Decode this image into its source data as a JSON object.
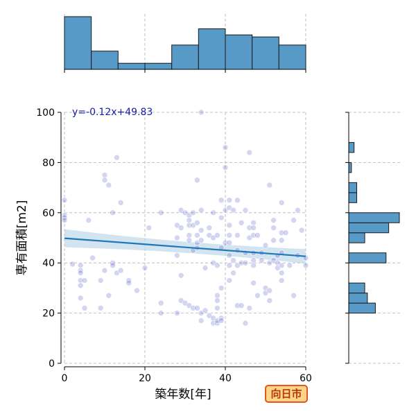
{
  "chart_data": {
    "type": "scatter",
    "xlabel": "築年数[年]",
    "ylabel": "専有面積[m2]",
    "xlim": [
      0,
      60
    ],
    "ylim": [
      0,
      100
    ],
    "x_ticks": [
      "0",
      "20",
      "40",
      "60"
    ],
    "y_ticks": [
      "0",
      "20",
      "40",
      "60",
      "80",
      "100"
    ],
    "grid": true,
    "annotation": "y=-0.12x+49.83",
    "regression": {
      "slope": -0.12,
      "intercept": 49.83,
      "ci_halfwidth_mid": 2.2,
      "ci_halfwidth_end": 3.6
    },
    "colors": {
      "points": "#3b3fbf",
      "line": "#1f77b4",
      "band": "#bcd6ea",
      "hist": "#5799c7",
      "annotation": "#1a1aaa"
    },
    "x_hist": {
      "bins": [
        0,
        6.67,
        13.33,
        20,
        26.67,
        33.33,
        40,
        46.67,
        53.33,
        60
      ],
      "counts": [
        26,
        9,
        3,
        3,
        12,
        20,
        17,
        16,
        12
      ]
    },
    "y_hist": {
      "bins": [
        0,
        4,
        8,
        12,
        16,
        20,
        24,
        28,
        32,
        36,
        40,
        44,
        48,
        52,
        56,
        60,
        64,
        68,
        72,
        76,
        80,
        84,
        88,
        92,
        96,
        100
      ],
      "counts": [
        0,
        0,
        0,
        0,
        0,
        10,
        7,
        6,
        0,
        0,
        14,
        0,
        6,
        15,
        19,
        0,
        3,
        3,
        0,
        1,
        0,
        2,
        0,
        0,
        0
      ]
    },
    "points": [
      [
        0,
        65
      ],
      [
        0,
        59
      ],
      [
        0,
        58
      ],
      [
        0,
        57
      ],
      [
        2,
        39.5
      ],
      [
        4,
        39
      ],
      [
        4,
        37
      ],
      [
        4,
        36
      ],
      [
        4,
        33
      ],
      [
        4,
        31
      ],
      [
        4,
        26
      ],
      [
        5,
        22
      ],
      [
        5,
        33
      ],
      [
        6,
        57
      ],
      [
        7,
        42
      ],
      [
        9,
        33
      ],
      [
        9,
        22
      ],
      [
        10,
        75
      ],
      [
        10,
        73
      ],
      [
        10,
        37
      ],
      [
        11,
        71
      ],
      [
        11,
        27
      ],
      [
        12,
        60
      ],
      [
        12,
        40
      ],
      [
        12,
        39
      ],
      [
        13,
        82
      ],
      [
        13,
        36
      ],
      [
        14,
        64
      ],
      [
        14,
        37
      ],
      [
        16,
        33
      ],
      [
        16,
        32
      ],
      [
        18,
        29
      ],
      [
        20,
        38
      ],
      [
        21,
        54
      ],
      [
        24,
        60
      ],
      [
        24,
        24
      ],
      [
        24,
        20
      ],
      [
        28,
        55
      ],
      [
        28,
        50
      ],
      [
        28,
        43
      ],
      [
        28,
        20
      ],
      [
        29,
        61
      ],
      [
        29,
        54
      ],
      [
        29,
        35
      ],
      [
        29,
        25
      ],
      [
        30,
        60
      ],
      [
        30,
        24
      ],
      [
        31,
        59
      ],
      [
        31,
        57
      ],
      [
        31,
        55
      ],
      [
        31,
        51
      ],
      [
        31,
        49
      ],
      [
        31,
        23
      ],
      [
        32,
        60
      ],
      [
        32,
        55
      ],
      [
        32,
        45
      ],
      [
        32,
        22
      ],
      [
        33,
        73
      ],
      [
        33,
        56
      ],
      [
        33,
        51
      ],
      [
        33,
        48
      ],
      [
        33,
        46
      ],
      [
        33,
        22
      ],
      [
        34,
        100
      ],
      [
        34,
        61
      ],
      [
        34,
        53
      ],
      [
        34,
        49
      ],
      [
        34,
        17
      ],
      [
        34,
        20
      ],
      [
        35,
        38
      ],
      [
        35,
        21
      ],
      [
        36,
        54
      ],
      [
        36,
        51
      ],
      [
        36,
        19
      ],
      [
        37,
        60
      ],
      [
        37,
        50
      ],
      [
        37,
        40
      ],
      [
        37,
        16
      ],
      [
        37,
        18
      ],
      [
        38,
        51
      ],
      [
        38,
        39
      ],
      [
        38,
        27
      ],
      [
        38,
        25
      ],
      [
        38,
        22
      ],
      [
        38,
        16
      ],
      [
        38,
        17
      ],
      [
        39,
        65
      ],
      [
        39,
        58
      ],
      [
        39,
        46
      ],
      [
        39,
        30
      ],
      [
        39,
        18
      ],
      [
        39,
        17
      ],
      [
        40,
        86
      ],
      [
        40,
        78
      ],
      [
        40,
        61
      ],
      [
        40,
        48
      ],
      [
        41,
        65
      ],
      [
        41,
        62
      ],
      [
        41,
        55
      ],
      [
        41,
        51
      ],
      [
        41,
        48
      ],
      [
        41,
        43
      ],
      [
        41,
        39
      ],
      [
        41,
        33
      ],
      [
        42,
        61
      ],
      [
        42,
        41
      ],
      [
        42,
        36
      ],
      [
        43,
        65
      ],
      [
        43,
        51
      ],
      [
        43,
        45
      ],
      [
        43,
        39
      ],
      [
        43,
        23
      ],
      [
        44,
        56
      ],
      [
        44,
        40
      ],
      [
        44,
        23
      ],
      [
        45,
        61
      ],
      [
        45,
        44
      ],
      [
        45,
        40
      ],
      [
        45,
        16
      ],
      [
        46,
        84
      ],
      [
        46,
        54
      ],
      [
        46,
        50
      ],
      [
        46,
        22
      ],
      [
        47,
        56
      ],
      [
        47,
        54
      ],
      [
        47,
        51
      ],
      [
        47,
        44
      ],
      [
        47,
        41
      ],
      [
        47,
        39
      ],
      [
        47,
        32
      ],
      [
        48,
        51
      ],
      [
        48,
        27
      ],
      [
        49,
        44
      ],
      [
        49,
        41
      ],
      [
        50,
        47
      ],
      [
        50,
        30
      ],
      [
        50,
        28
      ],
      [
        51,
        71
      ],
      [
        51,
        40
      ],
      [
        51,
        29
      ],
      [
        51,
        25
      ],
      [
        52,
        57
      ],
      [
        52,
        54
      ],
      [
        52,
        49
      ],
      [
        52,
        41
      ],
      [
        53,
        43
      ],
      [
        53,
        40
      ],
      [
        53,
        38
      ],
      [
        54,
        64
      ],
      [
        54,
        52
      ],
      [
        54,
        49
      ],
      [
        54,
        44
      ],
      [
        54,
        39
      ],
      [
        54,
        36
      ],
      [
        54,
        33
      ],
      [
        55,
        52
      ],
      [
        56,
        39
      ],
      [
        57,
        57
      ],
      [
        57,
        27
      ],
      [
        58,
        61
      ],
      [
        58,
        43
      ],
      [
        59,
        53
      ],
      [
        60,
        39
      ],
      [
        60,
        42
      ]
    ]
  },
  "badge": {
    "label": "向日市"
  }
}
